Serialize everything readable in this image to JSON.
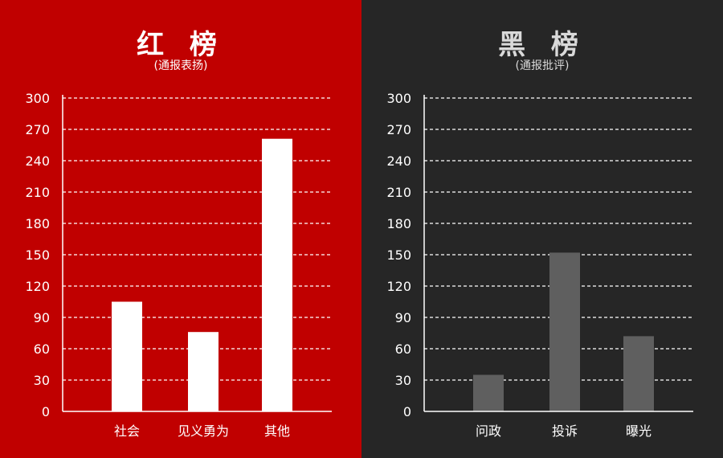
{
  "chart_data": [
    {
      "type": "bar",
      "title": "红 榜",
      "subtitle": "(通报表扬)",
      "categories": [
        "社会",
        "见义勇为",
        "其他"
      ],
      "values": [
        105,
        76,
        261
      ],
      "ylim": [
        0,
        300
      ],
      "yticks": [
        0,
        30,
        60,
        90,
        120,
        150,
        180,
        210,
        240,
        270,
        300
      ],
      "grid": true,
      "colors": {
        "background": "#c00000",
        "bar": "#ffffff",
        "text": "#ffffff",
        "grid": "#ffffff"
      }
    },
    {
      "type": "bar",
      "title": "黑 榜",
      "subtitle": "(通报批评)",
      "categories": [
        "问政",
        "投诉",
        "曝光"
      ],
      "values": [
        35,
        152,
        72
      ],
      "ylim": [
        0,
        300
      ],
      "yticks": [
        0,
        30,
        60,
        90,
        120,
        150,
        180,
        210,
        240,
        270,
        300
      ],
      "grid": true,
      "colors": {
        "background": "#262626",
        "bar": "#5f5f5f",
        "text": "#ffffff",
        "grid": "#ffffff"
      }
    }
  ]
}
